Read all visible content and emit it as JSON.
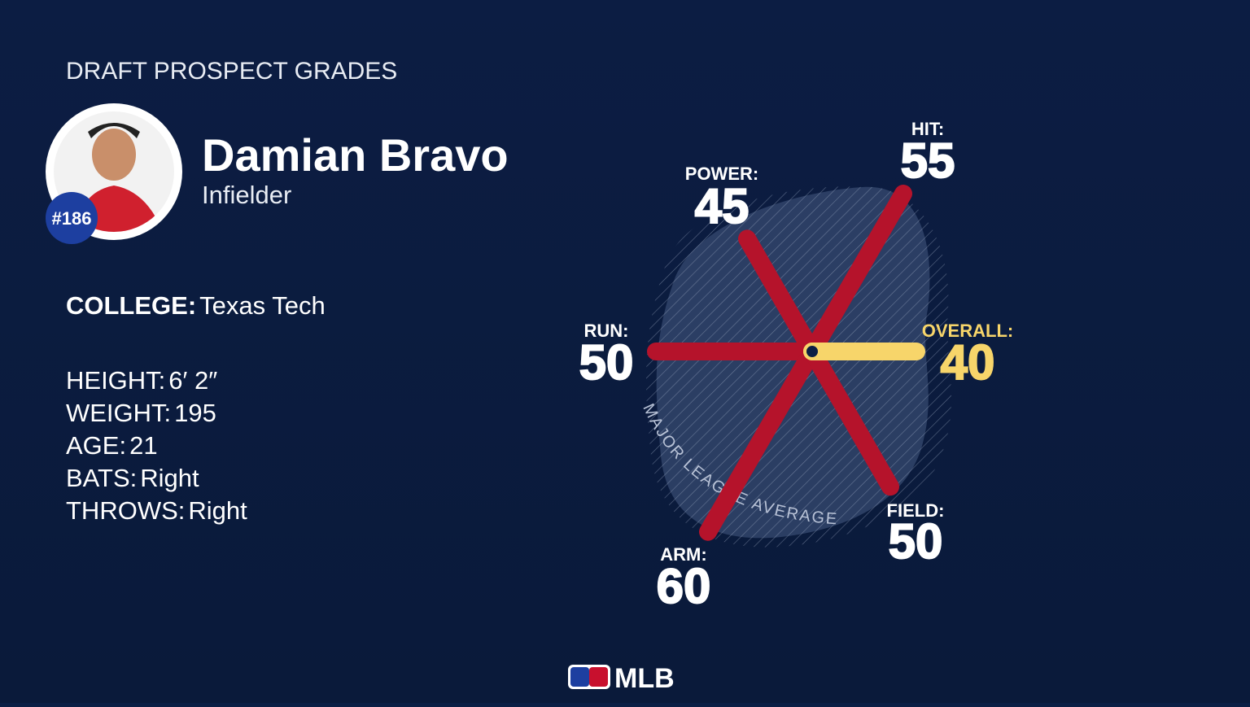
{
  "header": {
    "kicker": "DRAFT PROSPECT GRADES",
    "name": "Damian Bravo",
    "position": "Infielder",
    "rank": "#186"
  },
  "details": {
    "college": {
      "label": "COLLEGE:",
      "value": "Texas Tech"
    },
    "rows": [
      {
        "label": "HEIGHT:",
        "value": "6′ 2″"
      },
      {
        "label": "WEIGHT:",
        "value": "195"
      },
      {
        "label": "AGE:",
        "value": "21"
      },
      {
        "label": "BATS:",
        "value": "Right"
      },
      {
        "label": "THROWS:",
        "value": "Right"
      }
    ]
  },
  "chart_data": {
    "type": "radial",
    "categories": [
      "HIT:",
      "POWER:",
      "RUN:",
      "ARM:",
      "FIELD:",
      "OVERALL:"
    ],
    "values": [
      55,
      45,
      50,
      60,
      50,
      40
    ],
    "colors": [
      "#b5132b",
      "#b5132b",
      "#b5132b",
      "#b5132b",
      "#b5132b",
      "#f7d56a"
    ],
    "rlim": [
      20,
      80
    ],
    "reference_label": "MAJOR LEAGUE AVERAGE"
  },
  "footer": {
    "logo": "MLB"
  }
}
